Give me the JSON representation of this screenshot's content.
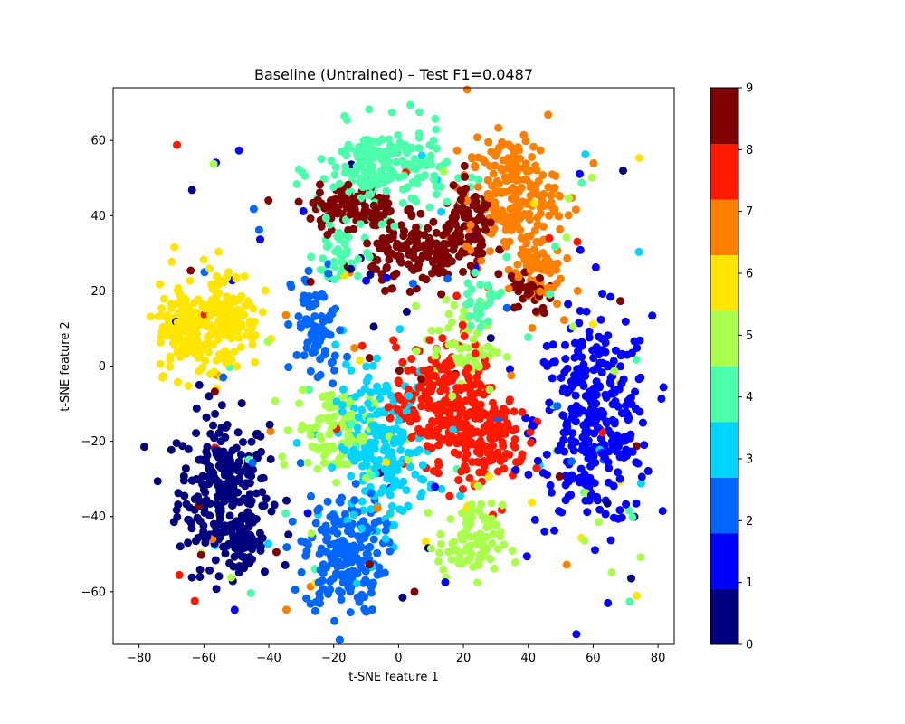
{
  "chart_data": {
    "type": "scatter",
    "title": "Baseline (Untrained) – Test F1=0.0487",
    "xlabel": "t-SNE feature 1",
    "ylabel": "t-SNE feature 2",
    "xlim": [
      -88,
      85
    ],
    "ylim": [
      -74,
      74
    ],
    "xticks": [
      -80,
      -60,
      -40,
      -20,
      0,
      20,
      40,
      60,
      80
    ],
    "yticks": [
      -60,
      -40,
      -20,
      0,
      20,
      40,
      60
    ],
    "colormap": "jet",
    "colorbar": {
      "range": [
        0,
        9
      ],
      "ticks": [
        0,
        1,
        2,
        3,
        4,
        5,
        6,
        7,
        8,
        9
      ],
      "colors": [
        "#00007f",
        "#0000ff",
        "#0066ff",
        "#00d4ff",
        "#4cffaa",
        "#aaff4c",
        "#ffe500",
        "#ff7f00",
        "#ff1900",
        "#7f0000"
      ]
    },
    "clusters": [
      {
        "label": 0,
        "color": "#00007f",
        "cx": -54,
        "cy": -33,
        "sx": 7,
        "sy": 10,
        "n": 260
      },
      {
        "label": 0,
        "color": "#00007f",
        "cx": -48,
        "cy": -47,
        "sx": 3,
        "sy": 3,
        "n": 60
      },
      {
        "label": 1,
        "color": "#0000ff",
        "cx": 60,
        "cy": -15,
        "sx": 9,
        "sy": 14,
        "n": 320
      },
      {
        "label": 2,
        "color": "#0066ff",
        "cx": -17,
        "cy": -50,
        "sx": 6,
        "sy": 8,
        "n": 200
      },
      {
        "label": 2,
        "color": "#0066ff",
        "cx": -25,
        "cy": 10,
        "sx": 4,
        "sy": 8,
        "n": 80
      },
      {
        "label": 3,
        "color": "#00d4ff",
        "cx": -5,
        "cy": -22,
        "sx": 7,
        "sy": 10,
        "n": 220
      },
      {
        "label": 4,
        "color": "#4cffaa",
        "cx": -5,
        "cy": 52,
        "sx": 10,
        "sy": 6,
        "n": 200
      },
      {
        "label": 4,
        "color": "#4cffaa",
        "cx": -18,
        "cy": 30,
        "sx": 4,
        "sy": 5,
        "n": 40
      },
      {
        "label": 4,
        "color": "#4cffaa",
        "cx": 25,
        "cy": 17,
        "sx": 3,
        "sy": 3,
        "n": 30
      },
      {
        "label": 5,
        "color": "#aaff4c",
        "cx": -20,
        "cy": -17,
        "sx": 6,
        "sy": 6,
        "n": 100
      },
      {
        "label": 5,
        "color": "#aaff4c",
        "cx": 22,
        "cy": -47,
        "sx": 5,
        "sy": 5,
        "n": 90
      },
      {
        "label": 5,
        "color": "#aaff4c",
        "cx": 20,
        "cy": 5,
        "sx": 6,
        "sy": 6,
        "n": 60
      },
      {
        "label": 6,
        "color": "#ffe500",
        "cx": -66,
        "cy": 10,
        "sx": 4,
        "sy": 6,
        "n": 140
      },
      {
        "label": 6,
        "color": "#ffe500",
        "cx": -53,
        "cy": 13,
        "sx": 5,
        "sy": 7,
        "n": 140
      },
      {
        "label": 7,
        "color": "#ff7f00",
        "cx": 35,
        "cy": 45,
        "sx": 7,
        "sy": 8,
        "n": 220
      },
      {
        "label": 7,
        "color": "#ff7f00",
        "cx": 42,
        "cy": 25,
        "sx": 4,
        "sy": 5,
        "n": 60
      },
      {
        "label": 8,
        "color": "#ff1900",
        "cx": 15,
        "cy": -10,
        "sx": 8,
        "sy": 8,
        "n": 260
      },
      {
        "label": 8,
        "color": "#ff1900",
        "cx": 28,
        "cy": -20,
        "sx": 6,
        "sy": 6,
        "n": 100
      },
      {
        "label": 9,
        "color": "#7f0000",
        "cx": -14,
        "cy": 42,
        "sx": 7,
        "sy": 3,
        "n": 110
      },
      {
        "label": 9,
        "color": "#7f0000",
        "cx": 10,
        "cy": 30,
        "sx": 9,
        "sy": 4,
        "n": 170
      },
      {
        "label": 9,
        "color": "#7f0000",
        "cx": 22,
        "cy": 40,
        "sx": 4,
        "sy": 4,
        "n": 60
      },
      {
        "label": 9,
        "color": "#7f0000",
        "cx": 40,
        "cy": 20,
        "sx": 3,
        "sy": 3,
        "n": 30
      }
    ],
    "noise_points": 200
  }
}
